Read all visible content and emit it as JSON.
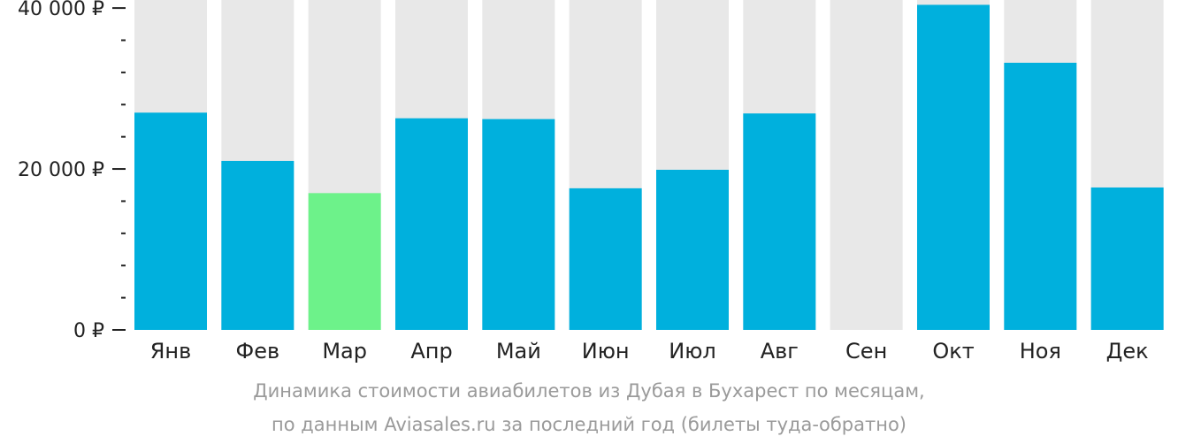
{
  "chart_data": {
    "type": "bar",
    "categories": [
      "Янв",
      "Фев",
      "Мар",
      "Апр",
      "Май",
      "Июн",
      "Июл",
      "Авг",
      "Сен",
      "Окт",
      "Ноя",
      "Дек"
    ],
    "values": [
      27000,
      21000,
      17000,
      26300,
      26200,
      17600,
      19900,
      26900,
      null,
      40400,
      33200,
      17700
    ],
    "highlight_index": 2,
    "ylim": [
      0,
      41000
    ],
    "yticks": [
      {
        "value": 0,
        "label": "0 ₽"
      },
      {
        "value": 20000,
        "label": "20 000 ₽"
      },
      {
        "value": 40000,
        "label": "40 000 ₽"
      }
    ],
    "minor_tick_step": 4000,
    "colors": {
      "bar": "#00b0dd",
      "highlight": "#6df28a",
      "background_bar": "#e8e8e8",
      "axis": "#222222"
    },
    "grid": false,
    "legend": "none"
  },
  "caption": {
    "line1": "Динамика стоимости авиабилетов из Дубая в Бухарест по месяцам,",
    "line2": "по данным Aviasales.ru за последний год (билеты туда-обратно)"
  }
}
